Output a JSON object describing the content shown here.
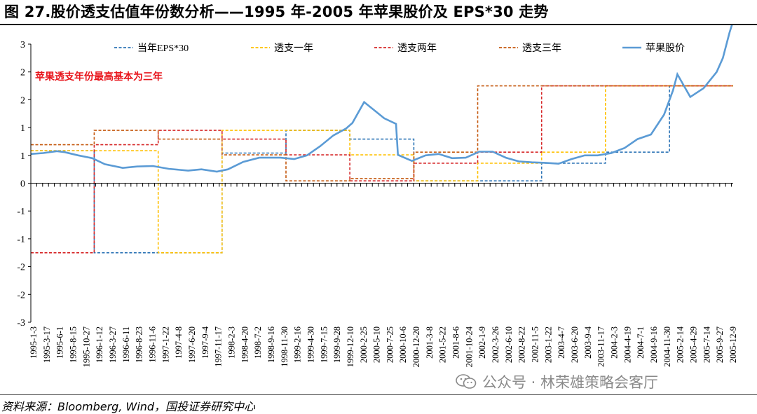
{
  "title": "图 27.股价透支估值年份数分析——1995 年-2005 年苹果股价及 EPS*30 走势",
  "source": "资料来源：Bloomberg, Wind，国投证券研究中心",
  "watermark": "公众号 · 林荣雄策略会客厅",
  "chart_data": {
    "type": "line",
    "title": "",
    "xlabel": "",
    "ylabel": "",
    "y_tick_labels": [
      "3",
      "2",
      "2",
      "1",
      "1",
      "0",
      "-1",
      "-1",
      "-2",
      "-2",
      "-3"
    ],
    "ylim": [
      -3,
      3
    ],
    "x_tick_labels": [
      "1995-1-3",
      "1995-3-17",
      "1995-6-1",
      "1995-8-15",
      "1995-10-27",
      "1996-1-12",
      "1996-3-27",
      "1996-6-11",
      "1996-8-23",
      "1996-11-6",
      "1997-1-22",
      "1997-4-8",
      "1997-6-20",
      "1997-9-4",
      "1997-11-17",
      "1998-2-3",
      "1998-4-20",
      "1998-7-2",
      "1998-9-16",
      "1998-11-30",
      "1999-2-16",
      "1999-4-30",
      "1999-7-15",
      "1999-9-28",
      "1999-12-10",
      "2000-2-25",
      "2000-5-10",
      "2000-7-25",
      "2000-10-6",
      "2000-12-20",
      "2001-3-8",
      "2001-5-22",
      "2001-8-6",
      "2001-10-24",
      "2002-1-9",
      "2002-3-26",
      "2002-6-10",
      "2002-8-22",
      "2002-11-5",
      "2003-1-22",
      "2003-4-7",
      "2003-6-20",
      "2003-9-4",
      "2003-11-17",
      "2004-2-3",
      "2004-4-19",
      "2004-7-1",
      "2004-9-16",
      "2004-11-30",
      "2005-2-14",
      "2005-4-29",
      "2005-7-14",
      "2005-9-27",
      "2005-12-9"
    ],
    "x_range": [
      "1995-01-03",
      "2005-12-30"
    ],
    "legend_position": "top",
    "annotation": "苹果透支年份最高基本为三年",
    "annotation_color": "#e8141b",
    "series": [
      {
        "name": "当年EPS*30",
        "style": "dashed",
        "color": "#2e75b6",
        "points": [
          [
            "1995-01-03",
            0.7
          ],
          [
            "1995-12-31",
            0.7
          ],
          [
            "1995-12-31",
            -1.5
          ],
          [
            "1997-12-31",
            -1.5
          ],
          [
            "1997-12-31",
            0.65
          ],
          [
            "1998-12-31",
            0.65
          ],
          [
            "1998-12-31",
            1.14
          ],
          [
            "1999-12-31",
            1.14
          ],
          [
            "1999-12-31",
            0.95
          ],
          [
            "2000-12-31",
            0.95
          ],
          [
            "2000-12-31",
            0.05
          ],
          [
            "2001-12-31",
            0.05
          ],
          [
            "2001-12-31",
            0.05
          ],
          [
            "2002-12-31",
            0.05
          ],
          [
            "2002-12-31",
            0.43
          ],
          [
            "2003-12-31",
            0.43
          ],
          [
            "2003-12-31",
            0.67
          ],
          [
            "2004-12-31",
            0.67
          ],
          [
            "2004-12-31",
            2.1
          ],
          [
            "2005-12-30",
            2.1
          ]
        ]
      },
      {
        "name": "透支一年",
        "style": "dashed",
        "color": "#ffc000",
        "points": [
          [
            "1995-01-03",
            0.7
          ],
          [
            "1996-12-31",
            0.7
          ],
          [
            "1996-12-31",
            -1.5
          ],
          [
            "1997-12-31",
            -1.5
          ],
          [
            "1997-12-31",
            1.14
          ],
          [
            "1999-12-31",
            1.14
          ],
          [
            "1999-12-31",
            0.61
          ],
          [
            "2000-12-31",
            0.61
          ],
          [
            "2000-12-31",
            0.05
          ],
          [
            "2001-12-31",
            0.05
          ],
          [
            "2001-12-31",
            0.43
          ],
          [
            "2002-12-31",
            0.43
          ],
          [
            "2002-12-31",
            0.67
          ],
          [
            "2003-12-31",
            0.67
          ],
          [
            "2003-12-31",
            2.1
          ],
          [
            "2005-12-30",
            2.1
          ]
        ]
      },
      {
        "name": "透支两年",
        "style": "dashed",
        "color": "#d62728",
        "points": [
          [
            "1995-01-03",
            -1.5
          ],
          [
            "1995-12-31",
            -1.5
          ],
          [
            "1995-12-31",
            0.83
          ],
          [
            "1996-12-31",
            0.83
          ],
          [
            "1996-12-31",
            1.14
          ],
          [
            "1997-12-31",
            1.14
          ],
          [
            "1997-12-31",
            0.95
          ],
          [
            "1998-12-31",
            0.95
          ],
          [
            "1998-12-31",
            0.61
          ],
          [
            "1999-12-31",
            0.61
          ],
          [
            "1999-12-31",
            0.05
          ],
          [
            "2000-12-31",
            0.05
          ],
          [
            "2000-12-31",
            0.43
          ],
          [
            "2001-12-31",
            0.43
          ],
          [
            "2001-12-31",
            0.67
          ],
          [
            "2002-12-31",
            0.67
          ],
          [
            "2002-12-31",
            2.1
          ],
          [
            "2005-12-30",
            2.1
          ]
        ]
      },
      {
        "name": "透支三年",
        "style": "dashed",
        "color": "#c55a11",
        "points": [
          [
            "1995-01-03",
            0.83
          ],
          [
            "1995-12-31",
            0.83
          ],
          [
            "1995-12-31",
            1.14
          ],
          [
            "1996-12-31",
            1.14
          ],
          [
            "1996-12-31",
            0.95
          ],
          [
            "1997-12-31",
            0.95
          ],
          [
            "1997-12-31",
            0.61
          ],
          [
            "1998-12-31",
            0.61
          ],
          [
            "1998-12-31",
            0.05
          ],
          [
            "1999-12-31",
            0.05
          ],
          [
            "1999-12-31",
            0.1
          ],
          [
            "2000-12-31",
            0.1
          ],
          [
            "2000-12-31",
            0.67
          ],
          [
            "2001-12-31",
            0.67
          ],
          [
            "2001-12-31",
            2.1
          ],
          [
            "2005-12-30",
            2.1
          ]
        ]
      },
      {
        "name": "苹果股价",
        "style": "solid",
        "color": "#5b9bd5",
        "points": [
          [
            "1995-01-03",
            0.63
          ],
          [
            "1995-03-15",
            0.65
          ],
          [
            "1995-06-01",
            0.69
          ],
          [
            "1995-07-15",
            0.67
          ],
          [
            "1995-10-01",
            0.6
          ],
          [
            "1995-12-20",
            0.54
          ],
          [
            "1996-03-01",
            0.41
          ],
          [
            "1996-06-11",
            0.33
          ],
          [
            "1996-09-01",
            0.36
          ],
          [
            "1996-12-01",
            0.37
          ],
          [
            "1997-03-01",
            0.31
          ],
          [
            "1997-06-20",
            0.27
          ],
          [
            "1997-09-04",
            0.3
          ],
          [
            "1997-12-01",
            0.25
          ],
          [
            "1998-02-03",
            0.3
          ],
          [
            "1998-05-01",
            0.46
          ],
          [
            "1998-08-01",
            0.55
          ],
          [
            "1998-11-30",
            0.55
          ],
          [
            "1999-02-16",
            0.52
          ],
          [
            "1999-04-30",
            0.6
          ],
          [
            "1999-07-15",
            0.8
          ],
          [
            "1999-09-28",
            1.03
          ],
          [
            "1999-12-10",
            1.18
          ],
          [
            "2000-01-15",
            1.3
          ],
          [
            "2000-03-22",
            1.75
          ],
          [
            "2000-05-10",
            1.6
          ],
          [
            "2000-07-15",
            1.4
          ],
          [
            "2000-09-20",
            1.28
          ],
          [
            "2000-10-01",
            0.61
          ],
          [
            "2000-12-20",
            0.48
          ],
          [
            "2001-03-08",
            0.6
          ],
          [
            "2001-05-22",
            0.63
          ],
          [
            "2001-08-06",
            0.54
          ],
          [
            "2001-10-24",
            0.55
          ],
          [
            "2002-01-09",
            0.68
          ],
          [
            "2002-03-26",
            0.68
          ],
          [
            "2002-06-10",
            0.55
          ],
          [
            "2002-08-22",
            0.47
          ],
          [
            "2002-11-05",
            0.45
          ],
          [
            "2003-01-22",
            0.44
          ],
          [
            "2003-04-07",
            0.42
          ],
          [
            "2003-06-20",
            0.52
          ],
          [
            "2003-09-04",
            0.6
          ],
          [
            "2003-11-17",
            0.6
          ],
          [
            "2004-02-03",
            0.65
          ],
          [
            "2004-04-19",
            0.76
          ],
          [
            "2004-07-01",
            0.95
          ],
          [
            "2004-09-16",
            1.05
          ],
          [
            "2004-11-30",
            1.48
          ],
          [
            "2005-01-20",
            2.0
          ],
          [
            "2005-02-14",
            2.35
          ],
          [
            "2005-04-29",
            1.86
          ],
          [
            "2005-07-14",
            2.05
          ],
          [
            "2005-09-27",
            2.4
          ],
          [
            "2005-11-01",
            2.7
          ],
          [
            "2005-12-09",
            3.25
          ],
          [
            "2005-12-30",
            3.5
          ]
        ]
      }
    ]
  }
}
